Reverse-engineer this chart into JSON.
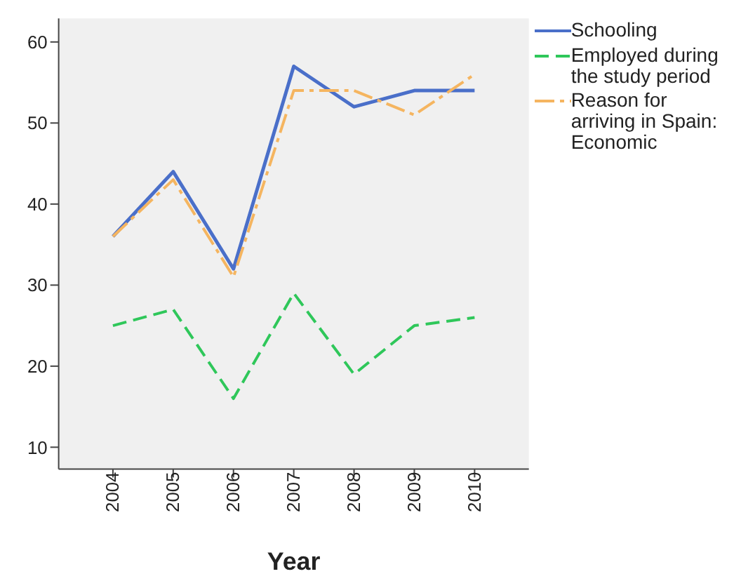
{
  "chart_data": {
    "type": "line",
    "xlabel": "Year",
    "categories": [
      "2004",
      "2005",
      "2006",
      "2007",
      "2008",
      "2009",
      "2010"
    ],
    "series": [
      {
        "name": "Schooling",
        "color": "#4a6fc9",
        "line_style": "solid",
        "values": [
          36,
          44,
          32,
          57,
          52,
          54,
          54
        ]
      },
      {
        "name": "Employed during the study period",
        "color": "#2fc75a",
        "line_style": "dashed",
        "values": [
          25,
          27,
          16,
          29,
          19,
          25,
          26
        ]
      },
      {
        "name": "Reason for arriving in Spain: Economic",
        "color": "#f5b560",
        "line_style": "dashdot",
        "values": [
          36,
          43,
          31,
          54,
          54,
          51,
          56
        ]
      }
    ],
    "ylim": [
      7.3,
      62.9
    ],
    "yticks": [
      10,
      20,
      30,
      40,
      50,
      60
    ],
    "grid": false,
    "legend": "right",
    "marker": "none"
  }
}
